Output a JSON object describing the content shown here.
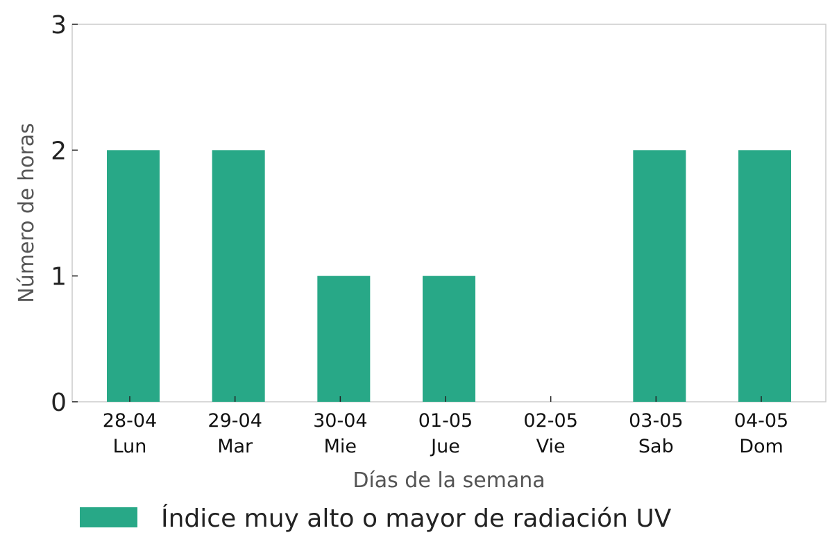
{
  "chart_data": {
    "type": "bar",
    "categories": [
      "28-04\nLun",
      "29-04\nMar",
      "30-04\nMie",
      "01-05\nJue",
      "02-05\nVie",
      "03-05\nSab",
      "04-05\nDom"
    ],
    "category_dates": [
      "28-04",
      "29-04",
      "30-04",
      "01-05",
      "02-05",
      "03-05",
      "04-05"
    ],
    "category_days": [
      "Lun",
      "Mar",
      "Mie",
      "Jue",
      "Vie",
      "Sab",
      "Dom"
    ],
    "series": [
      {
        "name": "Índice muy alto o mayor de radiación UV",
        "color": "#28a887",
        "values": [
          2,
          2,
          1,
          1,
          0,
          2,
          2
        ]
      }
    ],
    "xlabel": "Días de la semana",
    "ylabel": "Número de horas",
    "ylim": [
      0,
      3
    ],
    "yticks": [
      0,
      1,
      2,
      3
    ],
    "grid": false,
    "legend_position": "bottom"
  }
}
